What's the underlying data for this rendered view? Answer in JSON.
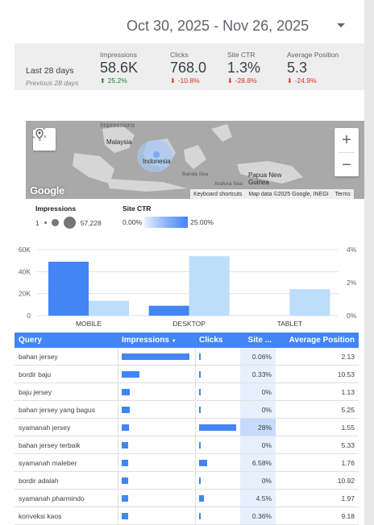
{
  "date_range": {
    "label": "Oct 30, 2025 - Nov 26, 2025"
  },
  "scorecard": {
    "period": "Last 28 days",
    "previous": "Previous 28 days",
    "metrics": [
      {
        "label": "Impressions",
        "value": "58.6K",
        "delta": "25.2%",
        "direction": "up"
      },
      {
        "label": "Clicks",
        "value": "768.0",
        "delta": "-10.8%",
        "direction": "down"
      },
      {
        "label": "Site CTR",
        "value": "1.3%",
        "delta": "-28.8%",
        "direction": "down"
      },
      {
        "label": "Average Position",
        "value": "5.3",
        "delta": "-24.9%",
        "direction": "down"
      }
    ]
  },
  "map": {
    "labels": [
      "Malaysia",
      "Indonesia",
      "Papua New Guinea",
      "Impressions",
      "Banda Sea",
      "Arafura Sea"
    ],
    "keyboard": "Keyboard shortcuts",
    "mapdata": "Map data ©2025 Google, INEGI",
    "terms": "Terms",
    "logo": "Google",
    "zoom_in": "+",
    "zoom_out": "−"
  },
  "legend": {
    "impressions_title": "Impressions",
    "imp_min": "1",
    "imp_max": "57,228",
    "ctr_title": "Site CTR",
    "ctr_min": "0.00%",
    "ctr_max": "25.00%"
  },
  "chart_data": {
    "type": "bar",
    "categories": [
      "MOBILE",
      "DESKTOP",
      "TABLET"
    ],
    "series": [
      {
        "name": "Impressions",
        "axis": "left",
        "color": "#4285f4",
        "values": [
          49000,
          9000,
          0
        ]
      },
      {
        "name": "Site CTR",
        "axis": "right",
        "color": "#bbdefb",
        "values": [
          0.9,
          3.6,
          1.6
        ]
      }
    ],
    "y_left": {
      "ticks": [
        "0",
        "20K",
        "40K",
        "60K"
      ],
      "range": [
        0,
        60000
      ]
    },
    "y_right": {
      "ticks": [
        "0%",
        "2%",
        "4%"
      ],
      "range": [
        0,
        4
      ]
    },
    "grid": true
  },
  "table": {
    "headers": {
      "query": "Query",
      "impressions": "Impressions",
      "sort_icon": "▼",
      "clicks": "Clicks",
      "ctr": "Site ...",
      "position": "Average Position"
    },
    "rows": [
      {
        "query": "bahan jersey",
        "impressions": 0.98,
        "clicks": 0.02,
        "ctr": "0.06%",
        "ctr_level": 0.0,
        "position": "2.13"
      },
      {
        "query": "bordir baju",
        "impressions": 0.26,
        "clicks": 0.04,
        "ctr": "0.33%",
        "ctr_level": 0.0,
        "position": "10.53"
      },
      {
        "query": "baju jersey",
        "impressions": 0.12,
        "clicks": 0.0,
        "ctr": "0%",
        "ctr_level": 0.0,
        "position": "1.13"
      },
      {
        "query": "bahan jersey yang bagus",
        "impressions": 0.12,
        "clicks": 0.0,
        "ctr": "0%",
        "ctr_level": 0.0,
        "position": "5.25"
      },
      {
        "query": "syamanah jersey",
        "impressions": 0.1,
        "clicks": 1.0,
        "ctr": "28%",
        "ctr_level": 1.0,
        "position": "1.55"
      },
      {
        "query": "bahan jersey terbaik",
        "impressions": 0.09,
        "clicks": 0.0,
        "ctr": "0%",
        "ctr_level": 0.0,
        "position": "5.33"
      },
      {
        "query": "syamanah maleber",
        "impressions": 0.09,
        "clicks": 0.2,
        "ctr": "6.58%",
        "ctr_level": 0.0,
        "position": "1.76"
      },
      {
        "query": "bordir adalah",
        "impressions": 0.09,
        "clicks": 0.0,
        "ctr": "0%",
        "ctr_level": 0.0,
        "position": "10.92"
      },
      {
        "query": "syamanah pharmindo",
        "impressions": 0.09,
        "clicks": 0.12,
        "ctr": "4.5%",
        "ctr_level": 0.0,
        "position": "1.97"
      },
      {
        "query": "konveksi kaos",
        "impressions": 0.09,
        "clicks": 0.02,
        "ctr": "0.36%",
        "ctr_level": 0.0,
        "position": "9.18"
      }
    ]
  }
}
